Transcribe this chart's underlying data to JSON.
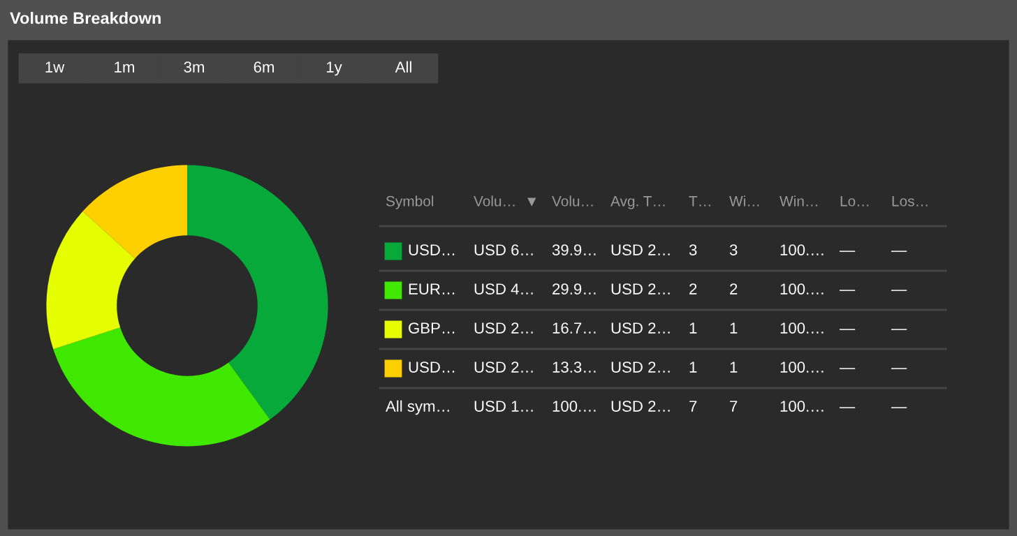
{
  "chart_data": {
    "type": "donut",
    "title": "Volume Breakdown",
    "categories": [
      "USD…",
      "EUR…",
      "GBP…",
      "USD…"
    ],
    "values": [
      40.0,
      30.0,
      16.7,
      13.3
    ],
    "colors": [
      "#07a93b",
      "#40e800",
      "#e5ff00",
      "#ffd000"
    ],
    "value_labels": [
      "39.9…",
      "29.9…",
      "16.7…",
      "13.3…"
    ],
    "legend": "right",
    "annotations": [
      "1w",
      "1m",
      "3m",
      "6m",
      "1y",
      "All",
      "Symbol",
      "Volu…  ▼",
      "Volu…",
      "Avg. T…",
      "T…",
      "Wi…",
      "Win…",
      "Lo…",
      "Los…",
      "USD 6…",
      "USD 2…",
      "3",
      "3",
      "100.…",
      "—",
      "—",
      "USD 4…",
      "USD 2…",
      "2",
      "2",
      "100.…",
      "—",
      "—",
      "USD 2…",
      "USD 2…",
      "1",
      "1",
      "100.…",
      "—",
      "—",
      "USD 2…",
      "USD 2…",
      "1",
      "1",
      "100.…",
      "—",
      "—",
      "All sym…",
      "USD 1…",
      "100.…",
      "USD 2…",
      "7",
      "7",
      "100.…",
      "—",
      "—"
    ]
  }
}
